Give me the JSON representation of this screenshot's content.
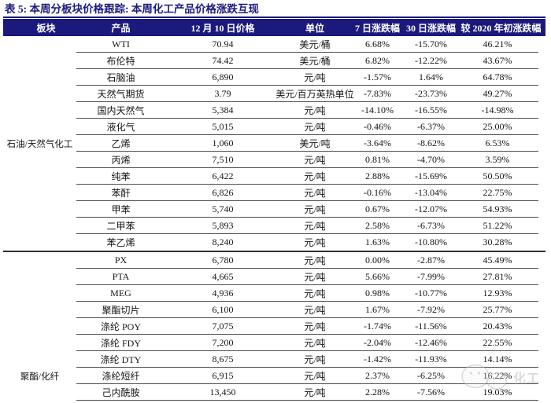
{
  "title": "表 5: 本周分板块价格跟踪: 本周化工产品价格涨跌互现",
  "colors": {
    "accent_navy": "#1b1a7c",
    "row_line": "#4a4a4a"
  },
  "table": {
    "headers": [
      "板块",
      "产品",
      "12 月 10 日价格",
      "单位",
      "7 日涨跌幅",
      "30 日涨跌幅",
      "较 2020 年初涨跌幅"
    ],
    "sections": [
      {
        "name": "石油/天然气化工",
        "label_row_index": 6,
        "rows": [
          [
            "WTI",
            "70.94",
            "美元/桶",
            "6.68%",
            "-15.70%",
            "46.21%"
          ],
          [
            "布伦特",
            "74.42",
            "美元/桶",
            "6.82%",
            "-12.22%",
            "43.67%"
          ],
          [
            "石脑油",
            "6,890",
            "元/吨",
            "-1.57%",
            "1.64%",
            "64.78%"
          ],
          [
            "天然气期货",
            "3.79",
            "美元/百万英热单位",
            "-7.83%",
            "-23.73%",
            "49.27%"
          ],
          [
            "国内天然气",
            "5,384",
            "元/吨",
            "-14.10%",
            "-16.55%",
            "-14.98%"
          ],
          [
            "液化气",
            "5,015",
            "元/吨",
            "-0.46%",
            "-6.37%",
            "25.00%"
          ],
          [
            "乙烯",
            "1,060",
            "美元/吨",
            "-3.64%",
            "-8.62%",
            "6.53%"
          ],
          [
            "丙烯",
            "7,510",
            "元/吨",
            "0.81%",
            "-4.70%",
            "3.59%"
          ],
          [
            "纯苯",
            "6,422",
            "元/吨",
            "2.88%",
            "-15.69%",
            "50.50%"
          ],
          [
            "苯酐",
            "6,826",
            "元/吨",
            "-0.16%",
            "-13.04%",
            "22.75%"
          ],
          [
            "甲苯",
            "5,740",
            "元/吨",
            "0.67%",
            "-12.07%",
            "54.93%"
          ],
          [
            "二甲苯",
            "5,893",
            "元/吨",
            "2.58%",
            "-6.73%",
            "51.22%"
          ],
          [
            "苯乙烯",
            "8,240",
            "元/吨",
            "1.63%",
            "-10.80%",
            "30.28%"
          ]
        ]
      },
      {
        "name": "聚酯/化纤",
        "label_row_index": 7,
        "rows": [
          [
            "PX",
            "6,780",
            "元/吨",
            "0.00%",
            "-2.87%",
            "45.49%"
          ],
          [
            "PTA",
            "4,665",
            "元/吨",
            "5.66%",
            "-7.99%",
            "27.81%"
          ],
          [
            "MEG",
            "4,936",
            "元/吨",
            "0.98%",
            "-10.77%",
            "12.93%"
          ],
          [
            "聚酯切片",
            "6,100",
            "元/吨",
            "1.67%",
            "-7.92%",
            "25.77%"
          ],
          [
            "涤纶 POY",
            "7,075",
            "元/吨",
            "-1.74%",
            "-11.56%",
            "20.43%"
          ],
          [
            "涤纶 FDY",
            "7,200",
            "元/吨",
            "-2.04%",
            "-12.46%",
            "22.55%"
          ],
          [
            "涤纶 DTY",
            "8,675",
            "元/吨",
            "-1.42%",
            "-11.93%",
            "14.14%"
          ],
          [
            "涤纶短纤",
            "6,915",
            "元/吨",
            "2.37%",
            "-6.25%",
            "16.22%"
          ],
          [
            "己内酰胺",
            "13,450",
            "元/吨",
            "2.28%",
            "-7.56%",
            "19.03%"
          ]
        ]
      }
    ]
  },
  "watermark": {
    "text": "化工"
  }
}
